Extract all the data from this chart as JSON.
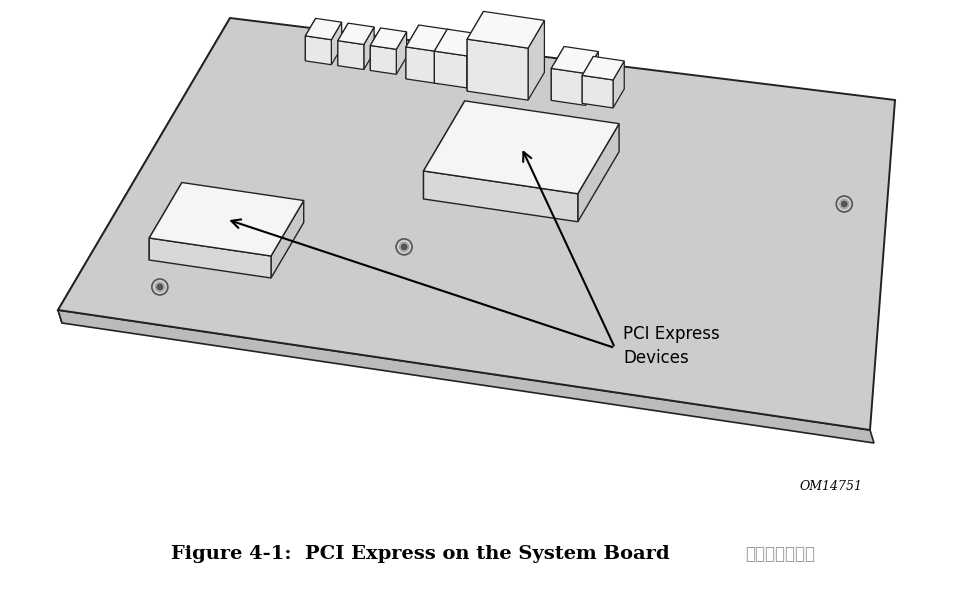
{
  "background_color": "#ffffff",
  "board_color": "#cccccc",
  "board_edge_color": "#222222",
  "board_left_face_color": "#aaaaaa",
  "board_bottom_face_color": "#bbbbbb",
  "chip_top_color": "#f5f5f5",
  "chip_front_color": "#d8d8d8",
  "chip_right_color": "#c8c8c8",
  "chip_edge_color": "#222222",
  "connector_front_color": "#e8e8e8",
  "connector_top_color": "#f8f8f8",
  "connector_right_color": "#d0d0d0",
  "connector_edge_color": "#222222",
  "screw_color": "#555555",
  "label_text": "PCI Express\nDevices",
  "label_fontsize": 12,
  "om_text": "OM14751",
  "om_fontsize": 9,
  "caption_text": "Figure 4-1:  PCI Express on the System Board",
  "caption_fontsize": 14,
  "caption_color": "#000000",
  "text_color": "#000000",
  "watermark_text": "硼件电子工程师",
  "watermark_fontsize": 12,
  "watermark_color": "#999999"
}
